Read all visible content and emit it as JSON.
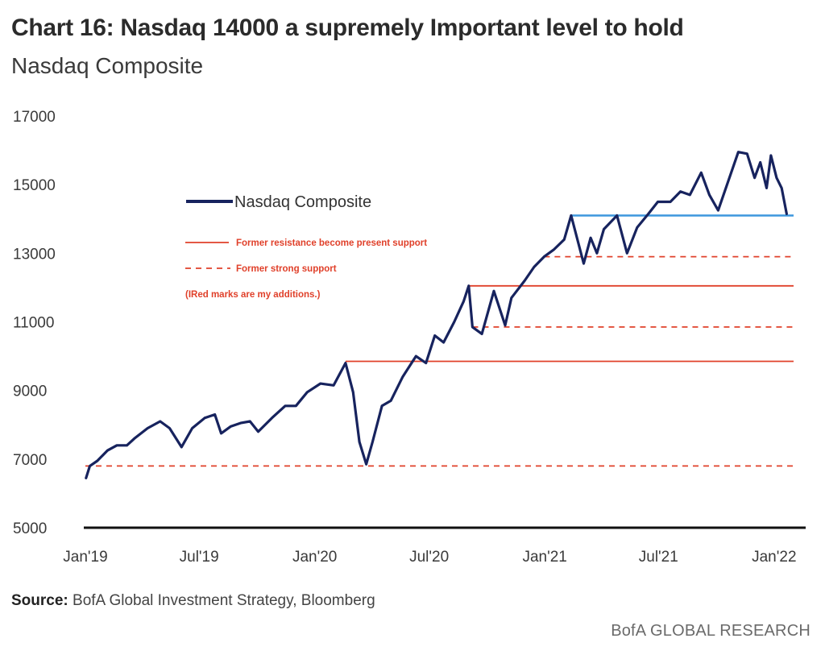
{
  "header": {
    "title": "Chart 16: Nasdaq 14000 a supremely Important level to hold",
    "subtitle": "Nasdaq Composite"
  },
  "footer": {
    "source_label": "Source:",
    "source_text": "BofA Global Investment Strategy, Bloomberg",
    "brand": "BofA GLOBAL RESEARCH"
  },
  "annotations": {
    "resistance": "Former resistance become present support",
    "support": "Former strong support",
    "note": "(IRed marks are my additions.)"
  },
  "colors": {
    "series": "#17235e",
    "resistance": "#e0402a",
    "blue_support": "#3d97dd",
    "axis": "#111111"
  },
  "chart_data": {
    "type": "line",
    "title": "Chart 16: Nasdaq 14000 a supremely Important level to hold",
    "subtitle": "Nasdaq Composite",
    "ylim": [
      5000,
      17000
    ],
    "y_ticks": [
      5000,
      7000,
      9000,
      11000,
      13000,
      15000,
      17000
    ],
    "x_range": [
      "2019-01-01",
      "2022-02-01"
    ],
    "x_ticks": [
      {
        "date": "2019-01-01",
        "label": "Jan'19"
      },
      {
        "date": "2019-07-01",
        "label": "Jul'19"
      },
      {
        "date": "2020-01-01",
        "label": "Jan'20"
      },
      {
        "date": "2020-07-01",
        "label": "Jul'20"
      },
      {
        "date": "2021-01-01",
        "label": "Jan'21"
      },
      {
        "date": "2021-07-01",
        "label": "Jul'21"
      },
      {
        "date": "2022-01-01",
        "label": "Jan'22"
      }
    ],
    "legend": {
      "position": "top-left"
    },
    "grid": false,
    "series": [
      {
        "name": "Nasdaq Composite",
        "points": [
          [
            "2019-01-02",
            6450
          ],
          [
            "2019-01-08",
            6800
          ],
          [
            "2019-01-20",
            6950
          ],
          [
            "2019-02-05",
            7250
          ],
          [
            "2019-02-20",
            7400
          ],
          [
            "2019-03-08",
            7400
          ],
          [
            "2019-03-20",
            7600
          ],
          [
            "2019-04-10",
            7900
          ],
          [
            "2019-04-30",
            8100
          ],
          [
            "2019-05-15",
            7900
          ],
          [
            "2019-06-03",
            7350
          ],
          [
            "2019-06-20",
            7900
          ],
          [
            "2019-07-10",
            8200
          ],
          [
            "2019-07-26",
            8300
          ],
          [
            "2019-08-05",
            7750
          ],
          [
            "2019-08-20",
            7950
          ],
          [
            "2019-09-05",
            8050
          ],
          [
            "2019-09-20",
            8100
          ],
          [
            "2019-10-03",
            7800
          ],
          [
            "2019-10-25",
            8200
          ],
          [
            "2019-11-15",
            8550
          ],
          [
            "2019-12-02",
            8550
          ],
          [
            "2019-12-20",
            8950
          ],
          [
            "2020-01-10",
            9200
          ],
          [
            "2020-01-31",
            9150
          ],
          [
            "2020-02-19",
            9800
          ],
          [
            "2020-03-02",
            8950
          ],
          [
            "2020-03-12",
            7500
          ],
          [
            "2020-03-23",
            6850
          ],
          [
            "2020-04-02",
            7500
          ],
          [
            "2020-04-17",
            8550
          ],
          [
            "2020-05-01",
            8700
          ],
          [
            "2020-05-20",
            9400
          ],
          [
            "2020-06-10",
            10000
          ],
          [
            "2020-06-26",
            9800
          ],
          [
            "2020-07-10",
            10600
          ],
          [
            "2020-07-24",
            10400
          ],
          [
            "2020-08-10",
            11000
          ],
          [
            "2020-08-25",
            11600
          ],
          [
            "2020-09-02",
            12050
          ],
          [
            "2020-09-08",
            10850
          ],
          [
            "2020-09-23",
            10650
          ],
          [
            "2020-10-12",
            11900
          ],
          [
            "2020-10-30",
            10900
          ],
          [
            "2020-11-09",
            11700
          ],
          [
            "2020-11-30",
            12200
          ],
          [
            "2020-12-15",
            12600
          ],
          [
            "2020-12-31",
            12900
          ],
          [
            "2021-01-15",
            13100
          ],
          [
            "2021-02-01",
            13400
          ],
          [
            "2021-02-12",
            14100
          ],
          [
            "2021-03-04",
            12700
          ],
          [
            "2021-03-15",
            13450
          ],
          [
            "2021-03-25",
            13000
          ],
          [
            "2021-04-05",
            13700
          ],
          [
            "2021-04-26",
            14100
          ],
          [
            "2021-05-12",
            13000
          ],
          [
            "2021-05-28",
            13750
          ],
          [
            "2021-06-15",
            14150
          ],
          [
            "2021-06-30",
            14500
          ],
          [
            "2021-07-20",
            14500
          ],
          [
            "2021-08-05",
            14800
          ],
          [
            "2021-08-20",
            14700
          ],
          [
            "2021-09-07",
            15350
          ],
          [
            "2021-09-20",
            14700
          ],
          [
            "2021-10-04",
            14250
          ],
          [
            "2021-10-20",
            15100
          ],
          [
            "2021-11-05",
            15950
          ],
          [
            "2021-11-19",
            15900
          ],
          [
            "2021-12-01",
            15200
          ],
          [
            "2021-12-10",
            15650
          ],
          [
            "2021-12-20",
            14900
          ],
          [
            "2021-12-27",
            15850
          ],
          [
            "2022-01-05",
            15200
          ],
          [
            "2022-01-13",
            14900
          ],
          [
            "2022-01-21",
            14150
          ]
        ]
      }
    ],
    "reference_lines": [
      {
        "kind": "resistance",
        "style": "solid",
        "color": "#e0402a",
        "y": 9850,
        "from": "2020-02-19",
        "to": "2022-02-01"
      },
      {
        "kind": "resistance",
        "style": "solid",
        "color": "#e0402a",
        "y": 12050,
        "from": "2020-09-02",
        "to": "2022-02-01"
      },
      {
        "kind": "support",
        "style": "dashed",
        "color": "#e0402a",
        "y": 6800,
        "from": "2019-01-01",
        "to": "2022-02-01"
      },
      {
        "kind": "support",
        "style": "dashed",
        "color": "#e0402a",
        "y": 10850,
        "from": "2020-09-08",
        "to": "2022-02-01"
      },
      {
        "kind": "support",
        "style": "dashed",
        "color": "#e0402a",
        "y": 12900,
        "from": "2020-12-31",
        "to": "2022-02-01"
      },
      {
        "kind": "blue_support",
        "style": "solid",
        "color": "#3d97dd",
        "y": 14100,
        "from": "2021-02-12",
        "to": "2022-02-01"
      }
    ]
  }
}
